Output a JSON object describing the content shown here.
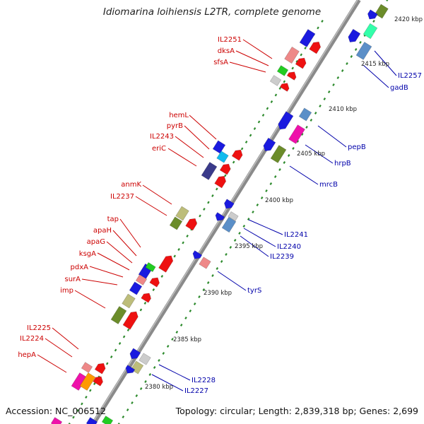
{
  "title": "Idiomarina loihiensis L2TR, complete genome",
  "footer": {
    "accession": "Accession: NC_006512",
    "summary": "Topology: circular; Length: 2,839,318 bp; Genes: 2,699"
  },
  "colors": {
    "backbone": "#8a8a8a",
    "tick": "#2e8b2e",
    "forward_label": "#cc0000",
    "reverse_label": "#0000aa",
    "feature_blue": "#1a1adf",
    "feature_red": "#ee1111",
    "feature_olive": "#6b8c2a",
    "feature_pink": "#ee8888",
    "feature_steel": "#5b8fc8",
    "feature_magenta": "#ee11aa",
    "feature_cyan": "#11bbee",
    "feature_navy": "#3a3a8a",
    "feature_green": "#22cc22",
    "feature_khaki": "#bdbd7a",
    "feature_grey": "#cccccc",
    "feature_mint": "#33ffaa",
    "feature_orange": "#ff9900"
  },
  "kbp_labels": [
    "2380 kbp",
    "2385 kbp",
    "2390 kbp",
    "2395 kbp",
    "2400 kbp",
    "2405 kbp",
    "2410 kbp",
    "2415 kbp",
    "2420 kbp"
  ],
  "forward_genes": [
    "IL2251",
    "dksA",
    "sfsA",
    "hemL",
    "pyrB",
    "IL2243",
    "eriC",
    "anmK",
    "IL2237",
    "tap",
    "apaH",
    "apaG",
    "ksgA",
    "pdxA",
    "surA",
    "imp",
    "IL2225",
    "IL2224",
    "hepA"
  ],
  "reverse_genes": [
    "IL2257",
    "gadB",
    "pepB",
    "hrpB",
    "mrcB",
    "IL2241",
    "IL2240",
    "IL2239",
    "tyrS",
    "IL2228",
    "IL2227"
  ]
}
